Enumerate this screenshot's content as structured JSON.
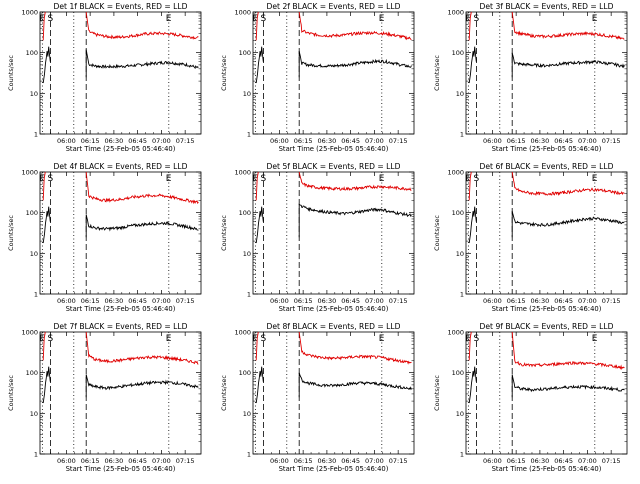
{
  "colors": {
    "events": "#000000",
    "lld": "#e00000",
    "axis": "#000000"
  },
  "common": {
    "xlabel": "Start Time (25-Feb-05 05:46:40)",
    "ylabel": "Counts/sec",
    "xticks": [
      {
        "label": "06:00",
        "t": 1000
      },
      {
        "label": "06:15",
        "t": 1900
      },
      {
        "label": "06:30",
        "t": 2800
      },
      {
        "label": "06:45",
        "t": 3700
      },
      {
        "label": "07:00",
        "t": 4600
      },
      {
        "label": "07:15",
        "t": 5500
      }
    ],
    "yticks": [
      {
        "label": "1",
        "v": 1
      },
      {
        "label": "10",
        "v": 10
      },
      {
        "label": "100",
        "v": 100
      },
      {
        "label": "1000",
        "v": 1000
      }
    ],
    "xlim": [
      0,
      6100
    ],
    "ylim": [
      1,
      1000
    ],
    "markers": [
      {
        "label": "E",
        "t": 90,
        "style": "dotted"
      },
      {
        "label": "S",
        "t": 400,
        "style": "dashed"
      },
      {
        "label": "",
        "t": 1280,
        "style": "dotted"
      },
      {
        "label": "",
        "t": 1750,
        "style": "dashed"
      },
      {
        "label": "E",
        "t": 4880,
        "style": "dotted"
      }
    ]
  },
  "chart_data": [
    {
      "type": "line",
      "title": "Det 1f BLACK = Events, RED = LLD",
      "series": [
        {
          "name": "Events",
          "x": [
            1750,
            1850,
            2100,
            2500,
            3000,
            3500,
            4000,
            4500,
            4880,
            5200,
            5600,
            6000
          ],
          "values": [
            120,
            52,
            47,
            45,
            46,
            48,
            52,
            56,
            58,
            54,
            50,
            42
          ]
        },
        {
          "name": "LLD",
          "x": [
            1750,
            1850,
            2100,
            2500,
            3000,
            3500,
            4000,
            4500,
            4880,
            5200,
            5600,
            6000
          ],
          "values": [
            1000,
            330,
            280,
            250,
            240,
            260,
            290,
            300,
            290,
            275,
            250,
            230
          ]
        }
      ]
    },
    {
      "type": "line",
      "title": "Det 2f BLACK = Events, RED = LLD",
      "series": [
        {
          "name": "Events",
          "x": [
            1750,
            1850,
            2100,
            2500,
            3000,
            3500,
            4000,
            4500,
            4880,
            5200,
            5600,
            6000
          ],
          "values": [
            110,
            55,
            50,
            48,
            47,
            50,
            55,
            60,
            62,
            58,
            50,
            45
          ]
        },
        {
          "name": "LLD",
          "x": [
            1750,
            1850,
            2100,
            2500,
            3000,
            3500,
            4000,
            4500,
            4880,
            5200,
            5600,
            6000
          ],
          "values": [
            1000,
            350,
            300,
            270,
            260,
            275,
            300,
            310,
            300,
            280,
            250,
            220
          ]
        }
      ]
    },
    {
      "type": "line",
      "title": "Det 3f BLACK = Events, RED = LLD",
      "series": [
        {
          "name": "Events",
          "x": [
            1750,
            1850,
            2100,
            2500,
            3000,
            3500,
            4000,
            4500,
            4880,
            5200,
            5600,
            6000
          ],
          "values": [
            100,
            55,
            52,
            50,
            48,
            52,
            56,
            58,
            60,
            56,
            52,
            46
          ]
        },
        {
          "name": "LLD",
          "x": [
            1750,
            1850,
            2100,
            2500,
            3000,
            3500,
            4000,
            4500,
            4880,
            5200,
            5600,
            6000
          ],
          "values": [
            1000,
            330,
            290,
            260,
            250,
            265,
            285,
            295,
            290,
            270,
            245,
            215
          ]
        }
      ]
    },
    {
      "type": "line",
      "title": "Det 4f BLACK = Events, RED = LLD",
      "series": [
        {
          "name": "Events",
          "x": [
            1750,
            1850,
            2100,
            2500,
            3000,
            3500,
            4000,
            4500,
            4880,
            5200,
            5600,
            6000
          ],
          "values": [
            90,
            48,
            42,
            40,
            42,
            48,
            52,
            55,
            55,
            50,
            45,
            38
          ]
        },
        {
          "name": "LLD",
          "x": [
            1750,
            1850,
            2100,
            2500,
            3000,
            3500,
            4000,
            4500,
            4880,
            5200,
            5600,
            6000
          ],
          "values": [
            1000,
            260,
            220,
            200,
            210,
            240,
            260,
            265,
            250,
            225,
            200,
            180
          ]
        }
      ]
    },
    {
      "type": "line",
      "title": "Det 5f BLACK = Events, RED = LLD",
      "series": [
        {
          "name": "Events",
          "x": [
            1750,
            1850,
            2100,
            2500,
            3000,
            3500,
            4000,
            4500,
            4880,
            5200,
            5600,
            6000
          ],
          "values": [
            160,
            145,
            125,
            110,
            100,
            95,
            105,
            118,
            120,
            105,
            95,
            85
          ]
        },
        {
          "name": "LLD",
          "x": [
            1750,
            1850,
            2100,
            2500,
            3000,
            3500,
            4000,
            4500,
            4880,
            5200,
            5600,
            6000
          ],
          "values": [
            1000,
            520,
            450,
            410,
            390,
            385,
            400,
            430,
            440,
            420,
            400,
            380
          ]
        }
      ]
    },
    {
      "type": "line",
      "title": "Det 6f BLACK = Events, RED = LLD",
      "series": [
        {
          "name": "Events",
          "x": [
            1750,
            1850,
            2100,
            2500,
            3000,
            3500,
            4000,
            4500,
            4880,
            5200,
            5600,
            6000
          ],
          "values": [
            110,
            60,
            55,
            52,
            50,
            55,
            62,
            70,
            72,
            68,
            62,
            55
          ]
        },
        {
          "name": "LLD",
          "x": [
            1750,
            1850,
            2100,
            2500,
            3000,
            3500,
            4000,
            4500,
            4880,
            5200,
            5600,
            6000
          ],
          "values": [
            1000,
            400,
            330,
            300,
            290,
            300,
            330,
            360,
            370,
            350,
            320,
            290
          ]
        }
      ]
    },
    {
      "type": "line",
      "title": "Det 7f BLACK = Events, RED = LLD",
      "series": [
        {
          "name": "Events",
          "x": [
            1750,
            1850,
            2100,
            2500,
            3000,
            3500,
            4000,
            4500,
            4880,
            5200,
            5600,
            6000
          ],
          "values": [
            90,
            50,
            45,
            42,
            45,
            50,
            55,
            58,
            58,
            55,
            50,
            44
          ]
        },
        {
          "name": "LLD",
          "x": [
            1750,
            1850,
            2100,
            2500,
            3000,
            3500,
            4000,
            4500,
            4880,
            5200,
            5600,
            6000
          ],
          "values": [
            1000,
            260,
            210,
            190,
            200,
            220,
            240,
            240,
            230,
            215,
            195,
            175
          ]
        }
      ]
    },
    {
      "type": "line",
      "title": "Det 8f BLACK = Events, RED = LLD",
      "series": [
        {
          "name": "Events",
          "x": [
            1750,
            1850,
            2100,
            2500,
            3000,
            3500,
            4000,
            4500,
            4880,
            5200,
            5600,
            6000
          ],
          "values": [
            100,
            65,
            55,
            50,
            48,
            52,
            56,
            55,
            52,
            48,
            44,
            40
          ]
        },
        {
          "name": "LLD",
          "x": [
            1750,
            1850,
            2100,
            2500,
            3000,
            3500,
            4000,
            4500,
            4880,
            5200,
            5600,
            6000
          ],
          "values": [
            1000,
            330,
            270,
            240,
            225,
            235,
            250,
            245,
            235,
            215,
            195,
            175
          ]
        }
      ]
    },
    {
      "type": "line",
      "title": "Det 9f BLACK = Events, RED = LLD",
      "series": [
        {
          "name": "Events",
          "x": [
            1750,
            1850,
            2100,
            2500,
            3000,
            3500,
            4000,
            4500,
            4880,
            5200,
            5600,
            6000
          ],
          "values": [
            90,
            45,
            40,
            38,
            40,
            42,
            45,
            45,
            44,
            42,
            40,
            36
          ]
        },
        {
          "name": "LLD",
          "x": [
            1750,
            1850,
            2100,
            2500,
            3000,
            3500,
            4000,
            4500,
            4880,
            5200,
            5600,
            6000
          ],
          "values": [
            1000,
            190,
            160,
            150,
            155,
            165,
            175,
            170,
            165,
            155,
            145,
            130
          ]
        }
      ]
    }
  ]
}
